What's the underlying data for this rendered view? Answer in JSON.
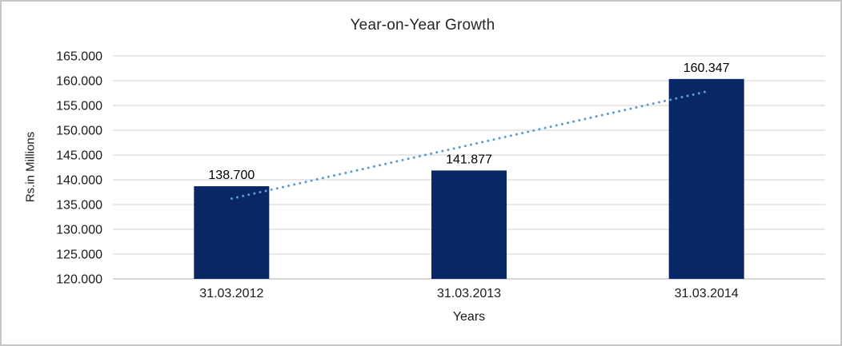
{
  "chart_data": {
    "type": "bar",
    "title": "Year-on-Year Growth",
    "xlabel": "Years",
    "ylabel": "Rs.in Millions",
    "categories": [
      "31.03.2012",
      "31.03.2013",
      "31.03.2014"
    ],
    "values": [
      138.7,
      141.877,
      160.347
    ],
    "data_labels": [
      "138.700",
      "141.877",
      "160.347"
    ],
    "ylim": [
      120,
      165
    ],
    "y_tick_step": 5,
    "y_tick_labels": [
      "120.000",
      "125.000",
      "130.000",
      "135.000",
      "140.000",
      "145.000",
      "150.000",
      "155.000",
      "160.000",
      "165.000"
    ],
    "grid": true,
    "legend": "none",
    "bar_color": "#0a2765",
    "gridline_color": "#d9d9d9",
    "axis_line_color": "#bfbfbf",
    "frame_border_color": "#c6c6c6",
    "trendline": {
      "type": "linear",
      "style": "dotted",
      "color": "#5b9bd5",
      "start_value": 136.2,
      "end_value": 157.8
    }
  }
}
